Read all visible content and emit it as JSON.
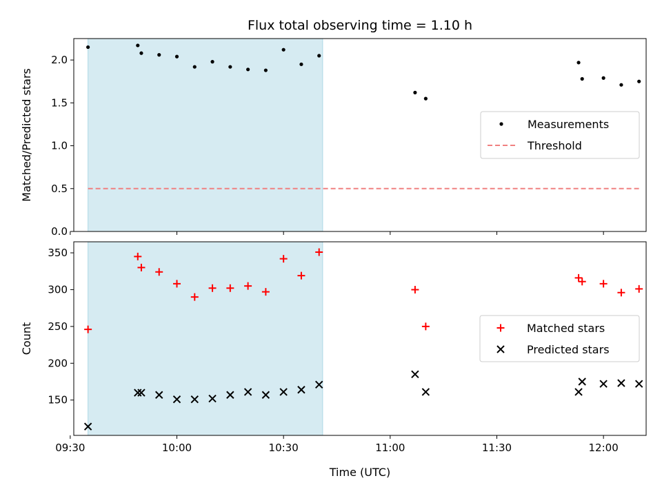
{
  "figure": {
    "title": "Flux total observing time = 1.10 h"
  },
  "chart_data": [
    {
      "type": "scatter",
      "ylabel": "Matched/Predicted stars",
      "xlabel": "",
      "xlim": [
        "09:31",
        "12:12"
      ],
      "ylim": [
        0,
        2.25
      ],
      "yticks": [
        0.0,
        0.5,
        1.0,
        1.5,
        2.0
      ],
      "ytick_labels": [
        "0.0",
        "0.5",
        "1.0",
        "1.5",
        "2.0"
      ],
      "xticks": [
        "09:30",
        "10:00",
        "10:30",
        "11:00",
        "11:30",
        "12:00"
      ],
      "show_xtick_labels": false,
      "legend_position": "center-right",
      "shaded_region": {
        "x_start": "09:35",
        "x_end": "10:41",
        "color": "#add8e6"
      },
      "series": [
        {
          "name": "Measurements",
          "kind": "dots",
          "color": "#000000",
          "points": [
            [
              "09:35",
              2.15
            ],
            [
              "09:49",
              2.17
            ],
            [
              "09:50",
              2.08
            ],
            [
              "09:55",
              2.06
            ],
            [
              "10:00",
              2.04
            ],
            [
              "10:05",
              1.92
            ],
            [
              "10:10",
              1.98
            ],
            [
              "10:15",
              1.92
            ],
            [
              "10:20",
              1.89
            ],
            [
              "10:25",
              1.88
            ],
            [
              "10:30",
              2.12
            ],
            [
              "10:35",
              1.95
            ],
            [
              "10:40",
              2.05
            ],
            [
              "11:07",
              1.62
            ],
            [
              "11:10",
              1.55
            ],
            [
              "11:53",
              1.97
            ],
            [
              "11:54",
              1.78
            ],
            [
              "12:00",
              1.79
            ],
            [
              "12:05",
              1.71
            ],
            [
              "12:10",
              1.75
            ]
          ]
        },
        {
          "name": "Threshold",
          "kind": "dashed-line",
          "color": "#f08080",
          "points": [
            [
              "09:35",
              0.5
            ],
            [
              "12:10",
              0.5
            ]
          ]
        }
      ]
    },
    {
      "type": "scatter",
      "ylabel": "Count",
      "xlabel": "Time (UTC)",
      "xlim": [
        "09:31",
        "12:12"
      ],
      "ylim": [
        102,
        365
      ],
      "yticks": [
        150,
        200,
        250,
        300,
        350
      ],
      "ytick_labels": [
        "150",
        "200",
        "250",
        "300",
        "350"
      ],
      "xticks": [
        "09:30",
        "10:00",
        "10:30",
        "11:00",
        "11:30",
        "12:00"
      ],
      "xtick_labels": [
        "09:30",
        "10:00",
        "10:30",
        "11:00",
        "11:30",
        "12:00"
      ],
      "show_xtick_labels": true,
      "legend_position": "center-right",
      "shaded_region": {
        "x_start": "09:35",
        "x_end": "10:41",
        "color": "#add8e6"
      },
      "series": [
        {
          "name": "Matched stars",
          "kind": "plus",
          "color": "#ff0000",
          "points": [
            [
              "09:35",
              246
            ],
            [
              "09:49",
              345
            ],
            [
              "09:50",
              330
            ],
            [
              "09:55",
              324
            ],
            [
              "10:00",
              308
            ],
            [
              "10:05",
              290
            ],
            [
              "10:10",
              302
            ],
            [
              "10:15",
              302
            ],
            [
              "10:20",
              305
            ],
            [
              "10:25",
              297
            ],
            [
              "10:30",
              342
            ],
            [
              "10:35",
              319
            ],
            [
              "10:40",
              351
            ],
            [
              "11:07",
              300
            ],
            [
              "11:10",
              250
            ],
            [
              "11:53",
              316
            ],
            [
              "11:54",
              311
            ],
            [
              "12:00",
              308
            ],
            [
              "12:05",
              296
            ],
            [
              "12:10",
              301
            ]
          ]
        },
        {
          "name": "Predicted stars",
          "kind": "cross",
          "color": "#000000",
          "points": [
            [
              "09:35",
              114
            ],
            [
              "09:49",
              160
            ],
            [
              "09:50",
              160
            ],
            [
              "09:55",
              157
            ],
            [
              "10:00",
              151
            ],
            [
              "10:05",
              151
            ],
            [
              "10:10",
              152
            ],
            [
              "10:15",
              157
            ],
            [
              "10:20",
              161
            ],
            [
              "10:25",
              157
            ],
            [
              "10:30",
              161
            ],
            [
              "10:35",
              164
            ],
            [
              "10:40",
              171
            ],
            [
              "11:07",
              185
            ],
            [
              "11:10",
              161
            ],
            [
              "11:53",
              161
            ],
            [
              "11:54",
              175
            ],
            [
              "12:00",
              172
            ],
            [
              "12:05",
              173
            ],
            [
              "12:10",
              172
            ]
          ]
        }
      ]
    }
  ]
}
